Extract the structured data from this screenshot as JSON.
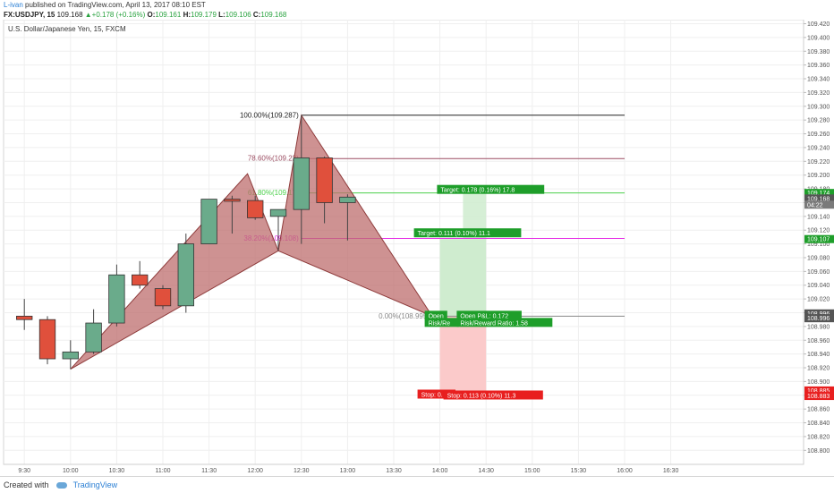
{
  "header": {
    "author": "L-ivan",
    "published": "published on TradingView.com, April 13, 2017 08:10 EST",
    "symbol": "FX:USDJPY, 15",
    "last": "109.168",
    "change": "+0.178 (+0.16%)",
    "o_label": "O:",
    "o": "109.161",
    "h_label": "H:",
    "h": "109.179",
    "l_label": "L:",
    "l": "109.106",
    "c_label": "C:",
    "c": "109.168"
  },
  "footer": {
    "created_with": "Created with",
    "brand": "TradingView"
  },
  "colors": {
    "up": "#6aab8b",
    "down": "#e0503c",
    "pattern_fill": "#bd6e6e",
    "pattern_stroke": "#8e3b3b",
    "target_zone": "#cfeccf",
    "stop_zone": "#fbcaca",
    "green_label": "#1e9e2a",
    "red_label": "#e81f1f",
    "fib_100": "#222222",
    "fib_786": "#9b4d62",
    "fib_618": "#4bd04b",
    "fib_382": "#e52ee5",
    "fib_0": "#888888"
  },
  "chart_data": {
    "type": "candlestick",
    "title": "U.S. Dollar/Japanese Yen, 15, FXCM",
    "xlabel": "",
    "ylabel": "",
    "ylim": [
      108.79,
      109.42
    ],
    "x_ticks": [
      "9:30",
      "10:00",
      "10:30",
      "11:00",
      "11:30",
      "12:00",
      "12:30",
      "13:00",
      "13:30",
      "14:00",
      "14:30",
      "15:00",
      "15:30",
      "16:00",
      "16:30"
    ],
    "y_ticks": [
      "109.420",
      "109.400",
      "109.380",
      "109.360",
      "109.340",
      "109.320",
      "109.300",
      "109.280",
      "109.260",
      "109.240",
      "109.220",
      "109.200",
      "109.180",
      "109.160",
      "109.140",
      "109.120",
      "109.100",
      "109.080",
      "109.060",
      "109.040",
      "109.020",
      "109.000",
      "108.980",
      "108.960",
      "108.940",
      "108.920",
      "108.900",
      "108.880",
      "108.860",
      "108.840",
      "108.820",
      "108.800"
    ],
    "grid": true,
    "candles": [
      {
        "t": "9:30",
        "o": 108.995,
        "h": 109.02,
        "l": 108.975,
        "c": 108.99
      },
      {
        "t": "9:45",
        "o": 108.99,
        "h": 108.995,
        "l": 108.925,
        "c": 108.933
      },
      {
        "t": "10:00",
        "o": 108.933,
        "h": 108.96,
        "l": 108.918,
        "c": 108.943
      },
      {
        "t": "10:15",
        "o": 108.943,
        "h": 109.005,
        "l": 108.94,
        "c": 108.985
      },
      {
        "t": "10:30",
        "o": 108.985,
        "h": 109.07,
        "l": 108.98,
        "c": 109.055
      },
      {
        "t": "10:45",
        "o": 109.055,
        "h": 109.075,
        "l": 109.035,
        "c": 109.04
      },
      {
        "t": "11:00",
        "o": 109.035,
        "h": 109.04,
        "l": 109.005,
        "c": 109.01
      },
      {
        "t": "11:15",
        "o": 109.01,
        "h": 109.115,
        "l": 109.0,
        "c": 109.1
      },
      {
        "t": "11:30",
        "o": 109.1,
        "h": 109.165,
        "l": 109.1,
        "c": 109.165
      },
      {
        "t": "11:45",
        "o": 109.165,
        "h": 109.17,
        "l": 109.115,
        "c": 109.162
      },
      {
        "t": "12:00",
        "o": 109.163,
        "h": 109.17,
        "l": 109.135,
        "c": 109.138
      },
      {
        "t": "12:15",
        "o": 109.14,
        "h": 109.15,
        "l": 109.09,
        "c": 109.15
      },
      {
        "t": "12:30",
        "o": 109.15,
        "h": 109.287,
        "l": 109.1,
        "c": 109.225
      },
      {
        "t": "12:45",
        "o": 109.225,
        "h": 109.227,
        "l": 109.13,
        "c": 109.16
      },
      {
        "t": "13:00",
        "o": 109.16,
        "h": 109.172,
        "l": 109.105,
        "c": 109.168
      }
    ],
    "pattern": [
      {
        "t": "10:00",
        "price": 108.918
      },
      {
        "t": "11:55",
        "price": 109.202
      },
      {
        "t": "12:15",
        "price": 109.09
      },
      {
        "t": "12:30",
        "price": 109.287
      },
      {
        "t": "13:55",
        "price": 108.995
      }
    ],
    "fib_levels": [
      {
        "label": "100.00%(109.287)",
        "price": 109.287
      },
      {
        "label": "78.60%(109.22)",
        "price": 109.224
      },
      {
        "label": "61.80%(109.17)",
        "price": 109.174
      },
      {
        "label": "38.20%(109.108)",
        "price": 109.108
      },
      {
        "label": "0.00%(108.995)",
        "price": 108.995
      }
    ],
    "fib_x_range": [
      "12:30",
      "16:00"
    ],
    "position": {
      "entry": 108.995,
      "target_1": 109.107,
      "target_2": 109.174,
      "stop": 108.883,
      "x_range_1": [
        "14:00",
        "14:30"
      ],
      "x_range_2": [
        "14:15",
        "14:30"
      ],
      "labels": {
        "target_1": "Target: 0.111 (0.10%) 11.1",
        "target_2": "Target: 0.178 (0.16%) 17.8",
        "open_pl": "Open P&L: 0.172",
        "open_pl_back": "Open",
        "rr": "Risk/Reward Ratio: 1.58",
        "rr_back": "Risk/Re",
        "stop": "Stop: 0.113 (0.10%) 11.3",
        "stop_back": "Stop: 0."
      }
    },
    "price_labels": [
      {
        "text": "109.174",
        "price": 109.174,
        "color": "#1e9e2a"
      },
      {
        "text": "109.168",
        "price": 109.166,
        "color": "#555555"
      },
      {
        "text": "04:22",
        "price": 109.157,
        "color": "#7a7a7a"
      },
      {
        "text": "109.107",
        "price": 109.107,
        "color": "#1e9e2a"
      },
      {
        "text": "108.996",
        "price": 108.999,
        "color": "#555555"
      },
      {
        "text": "108.996",
        "price": 108.992,
        "color": "#555555"
      },
      {
        "text": "108.885",
        "price": 108.887,
        "color": "#e81f1f"
      },
      {
        "text": "108.883",
        "price": 108.879,
        "color": "#e81f1f"
      }
    ]
  }
}
